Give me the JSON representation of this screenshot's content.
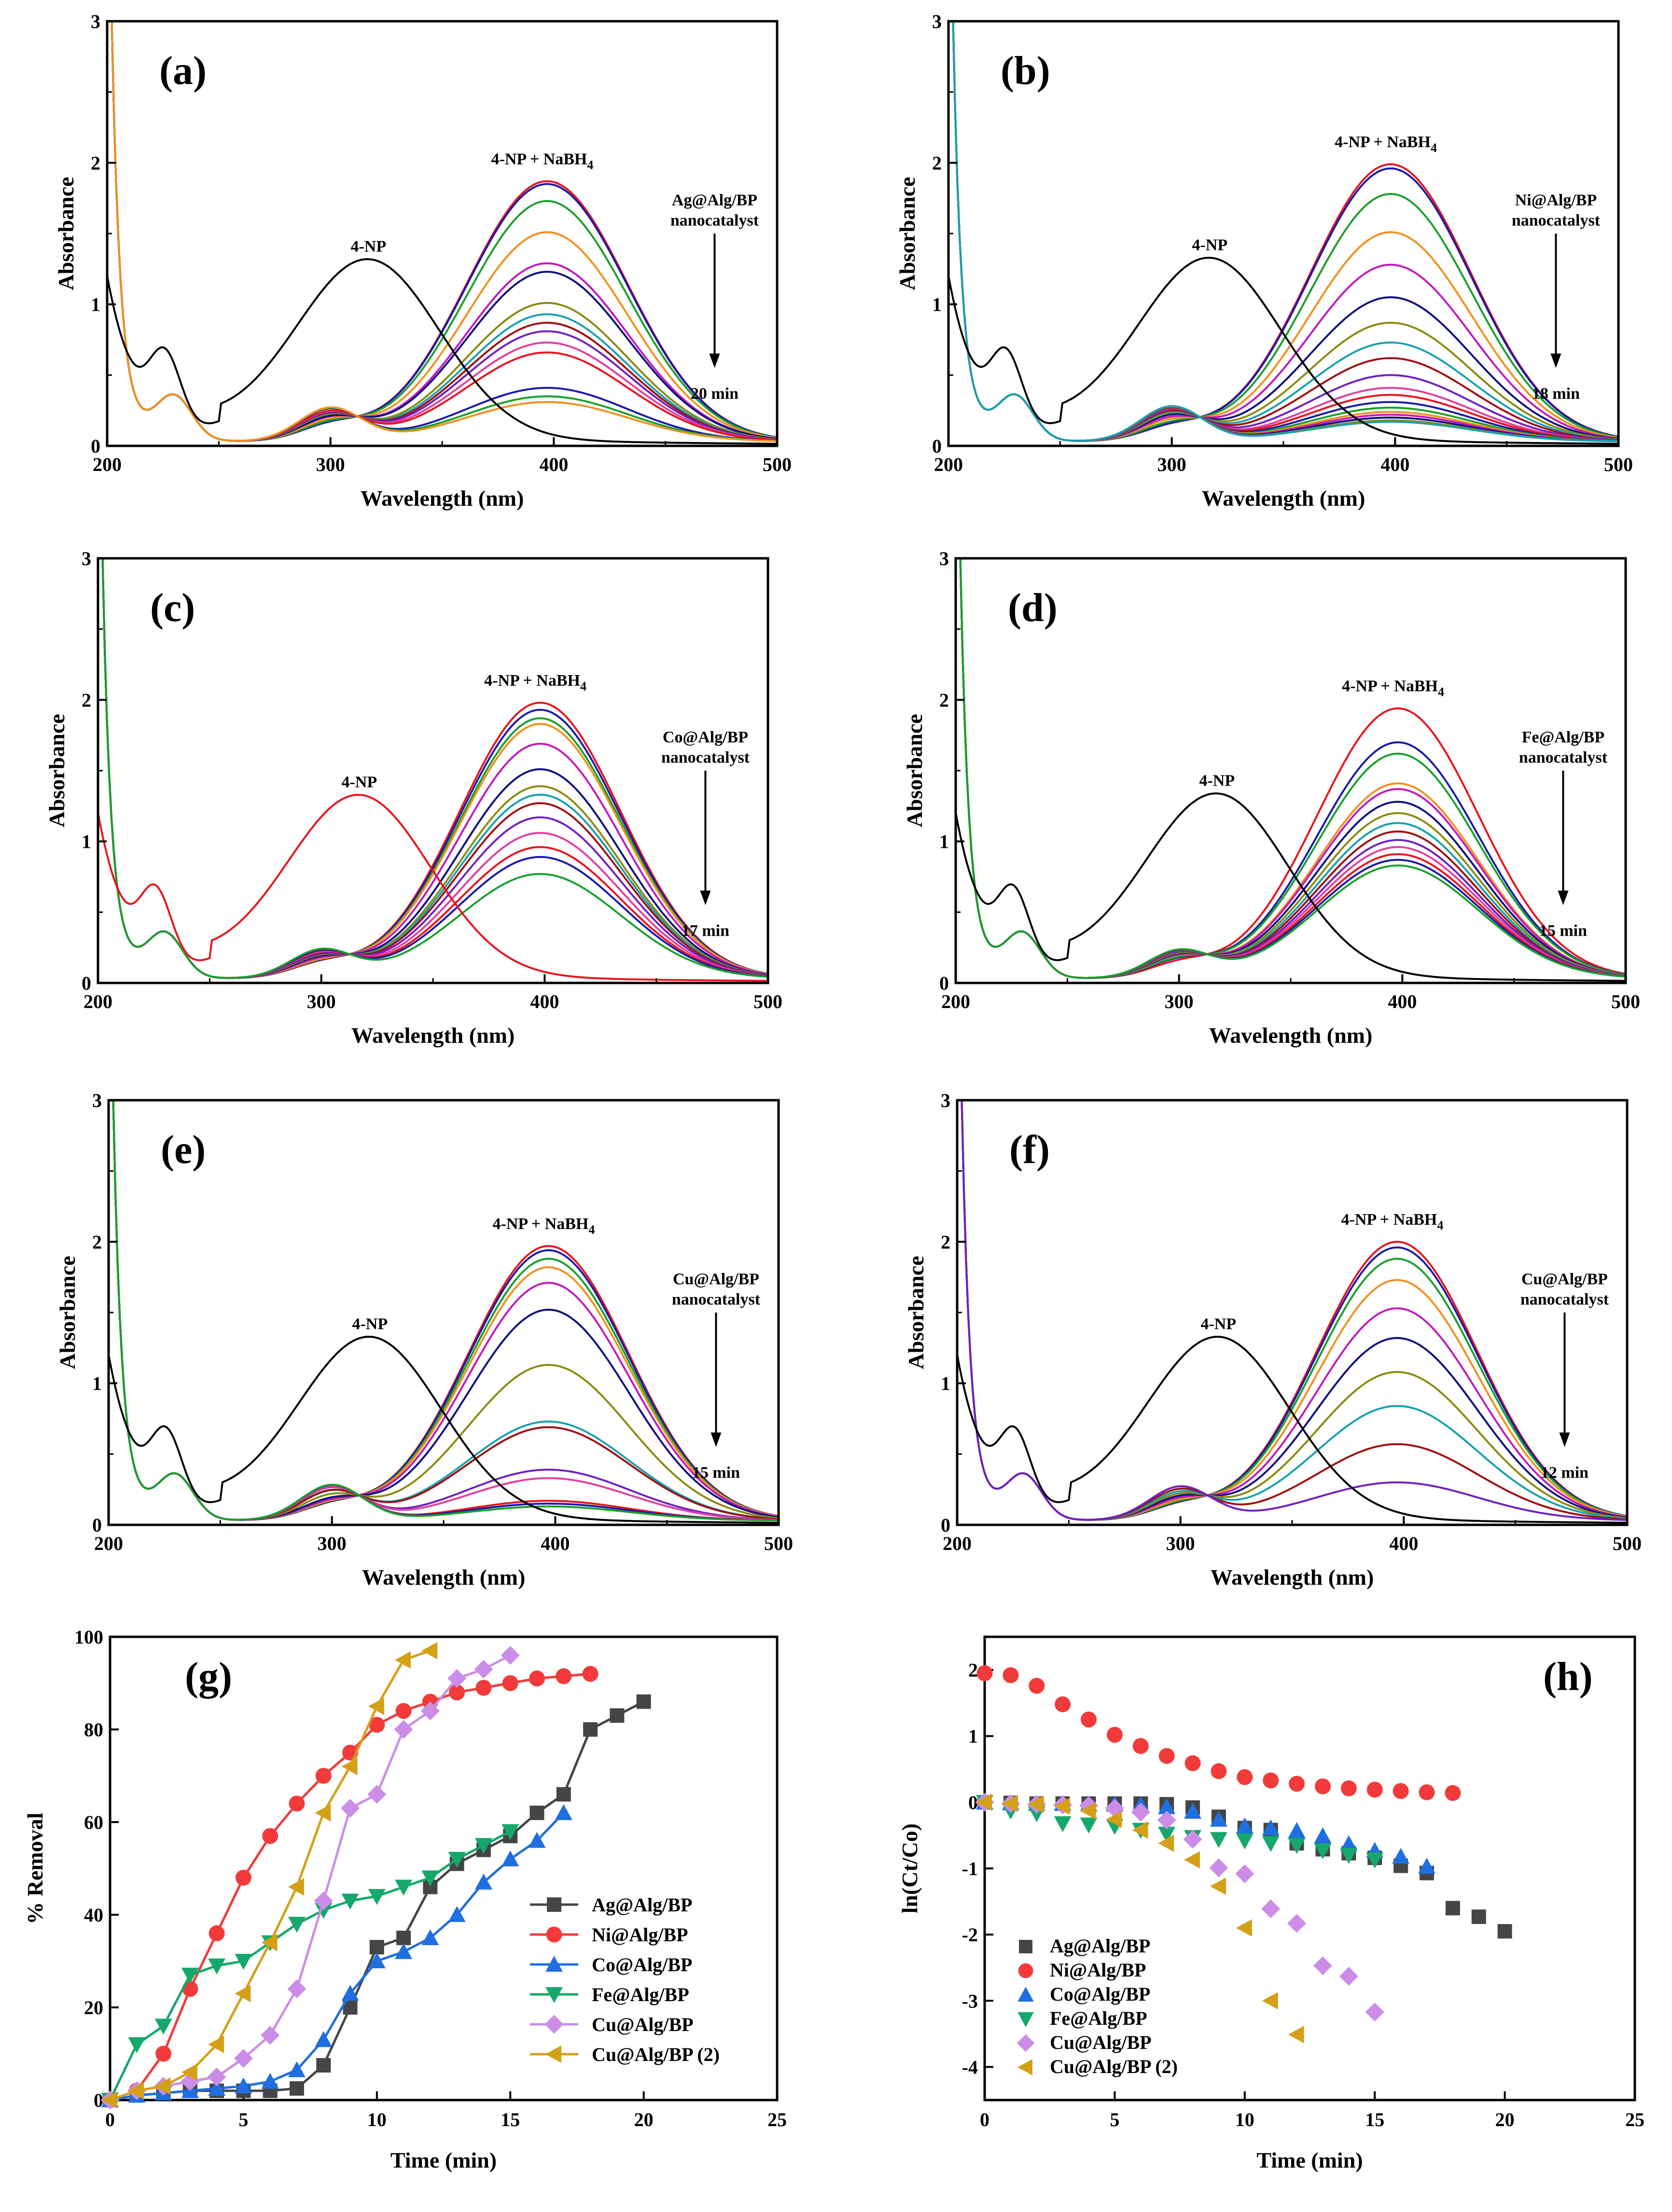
{
  "colors": {
    "black": "#000000",
    "red": "#e8141e",
    "blue": "#1a1aa8",
    "green": "#18a02a",
    "orange": "#f2901e",
    "magenta": "#c01abe",
    "navy": "#101080",
    "olive": "#8a8a10",
    "teal": "#18a0b0",
    "darkred": "#a01010",
    "violet": "#7020c0",
    "pink": "#e040a0",
    "ag": "#454545",
    "ni": "#f23a3a",
    "co": "#1f6fe0",
    "fe": "#15a86b",
    "cu": "#cc8de8",
    "cu2": "#d4a017"
  },
  "chart_data": [
    {
      "id": "a",
      "type": "line",
      "panel_label": "(a)",
      "xlabel": "Wavelength (nm)",
      "ylabel": "Absorbance",
      "xlim": [
        200,
        500
      ],
      "ylim": [
        0,
        3
      ],
      "xticks": [
        "200",
        "300",
        "400",
        "500"
      ],
      "yticks": [
        "0",
        "1",
        "2",
        "3"
      ],
      "label_4np": "4-NP",
      "label_mix": "4-NP + NaBH",
      "label_mix_sub": "4",
      "catalyst_line1": "Ag@Alg/BP",
      "catalyst_line2": "nanocatalyst",
      "time_label": "20 min",
      "peak_nm": 397,
      "peak_values": [
        1.84,
        1.82,
        1.7,
        1.48,
        1.26,
        1.2,
        0.98,
        0.9,
        0.84,
        0.78,
        0.7,
        0.63,
        0.38,
        0.32,
        0.28
      ],
      "np_peak": 1.25
    },
    {
      "id": "b",
      "type": "line",
      "panel_label": "(b)",
      "xlabel": "Wavelength (nm)",
      "ylabel": "Absorbance",
      "xlim": [
        200,
        500
      ],
      "ylim": [
        0,
        3
      ],
      "xticks": [
        "200",
        "300",
        "400",
        "500"
      ],
      "yticks": [
        "0",
        "1",
        "2",
        "3"
      ],
      "label_4np": "4-NP",
      "label_mix": "4-NP + NaBH",
      "label_mix_sub": "4",
      "catalyst_line1": "Ni@Alg/BP",
      "catalyst_line2": "nanocatalyst",
      "time_label": "18 min",
      "peak_nm": 398,
      "peak_values": [
        1.96,
        1.93,
        1.75,
        1.48,
        1.25,
        1.02,
        0.84,
        0.7,
        0.59,
        0.47,
        0.38,
        0.33,
        0.28,
        0.24,
        0.21,
        0.19,
        0.17,
        0.15,
        0.14
      ],
      "np_peak": 1.26
    },
    {
      "id": "c",
      "type": "line",
      "panel_label": "(c)",
      "xlabel": "Wavelength (nm)",
      "ylabel": "Absorbance",
      "xlim": [
        200,
        500
      ],
      "ylim": [
        0,
        3
      ],
      "xticks": [
        "200",
        "300",
        "400",
        "500"
      ],
      "yticks": [
        "0",
        "1",
        "2",
        "3"
      ],
      "label_4np": "4-NP",
      "label_mix": "4-NP + NaBH",
      "label_mix_sub": "4",
      "catalyst_line1": "Co@Alg/BP",
      "catalyst_line2": "nanocatalyst",
      "time_label": "17 min",
      "peak_nm": 398,
      "peak_values": [
        1.95,
        1.9,
        1.84,
        1.8,
        1.66,
        1.48,
        1.36,
        1.3,
        1.24,
        1.14,
        1.03,
        0.93,
        0.86,
        0.74
      ],
      "np_peak": 1.26
    },
    {
      "id": "d",
      "type": "line",
      "panel_label": "(d)",
      "xlabel": "Wavelength (nm)",
      "ylabel": "Absorbance",
      "xlim": [
        200,
        500
      ],
      "ylim": [
        0,
        3
      ],
      "xticks": [
        "200",
        "300",
        "400",
        "500"
      ],
      "yticks": [
        "0",
        "1",
        "2",
        "3"
      ],
      "label_4np": "4-NP",
      "label_mix": "4-NP + NaBH",
      "label_mix_sub": "4",
      "catalyst_line1": "Fe@Alg/BP",
      "catalyst_line2": "nanocatalyst",
      "time_label": "15 min",
      "peak_nm": 398,
      "peak_values": [
        1.91,
        1.67,
        1.59,
        1.38,
        1.34,
        1.25,
        1.17,
        1.1,
        1.04,
        0.98,
        0.93,
        0.88,
        0.84,
        0.8
      ],
      "np_peak": 1.27
    },
    {
      "id": "e",
      "type": "line",
      "panel_label": "(e)",
      "xlabel": "Wavelength (nm)",
      "ylabel": "Absorbance",
      "xlim": [
        200,
        500
      ],
      "ylim": [
        0,
        3
      ],
      "xticks": [
        "200",
        "300",
        "400",
        "500"
      ],
      "yticks": [
        "0",
        "1",
        "2",
        "3"
      ],
      "label_4np": "4-NP",
      "label_mix": "4-NP + NaBH",
      "label_mix_sub": "4",
      "catalyst_line1": "Cu@Alg/BP",
      "catalyst_line2": "nanocatalyst",
      "time_label": "15 min",
      "peak_nm": 397,
      "peak_values": [
        1.94,
        1.91,
        1.85,
        1.79,
        1.68,
        1.49,
        1.1,
        0.7,
        0.66,
        0.36,
        0.3,
        0.14,
        0.12,
        0.1
      ],
      "np_peak": 1.26
    },
    {
      "id": "f",
      "type": "line",
      "panel_label": "(f)",
      "xlabel": "Wavelength (nm)",
      "ylabel": "Absorbance",
      "xlim": [
        200,
        500
      ],
      "ylim": [
        0,
        3
      ],
      "xticks": [
        "200",
        "300",
        "400",
        "500"
      ],
      "yticks": [
        "0",
        "1",
        "2",
        "3"
      ],
      "label_4np": "4-NP",
      "label_mix": "4-NP + NaBH",
      "label_mix_sub": "4",
      "catalyst_line1": "Cu@Alg/BP",
      "catalyst_line2": "nanocatalyst",
      "time_label": "12 min",
      "peak_nm": 397,
      "peak_values": [
        1.97,
        1.93,
        1.85,
        1.7,
        1.5,
        1.29,
        1.05,
        0.81,
        0.54,
        0.27
      ],
      "np_peak": 1.26
    },
    {
      "id": "g",
      "type": "line",
      "panel_label": "(g)",
      "xlabel": "Time (min)",
      "ylabel": "% Removal",
      "xlim": [
        0,
        25
      ],
      "ylim": [
        0,
        100
      ],
      "xticks": [
        "0",
        "5",
        "10",
        "15",
        "20",
        "25"
      ],
      "yticks": [
        "0",
        "20",
        "40",
        "60",
        "80",
        "100"
      ],
      "series": [
        {
          "name": "Ag@Alg/BP",
          "marker": "square",
          "color_key": "ag",
          "x": [
            0,
            1,
            2,
            3,
            4,
            5,
            6,
            7,
            8,
            9,
            10,
            11,
            12,
            13,
            14,
            15,
            16,
            17,
            18,
            19,
            20
          ],
          "y": [
            0,
            1,
            1.5,
            2,
            2,
            2,
            2,
            2.5,
            7.5,
            20,
            33,
            35,
            46,
            51,
            54,
            57,
            62,
            66,
            80,
            83,
            86
          ]
        },
        {
          "name": "Ni@Alg/BP",
          "marker": "circle",
          "color_key": "ni",
          "x": [
            0,
            1,
            2,
            3,
            4,
            5,
            6,
            7,
            8,
            9,
            10,
            11,
            12,
            13,
            14,
            15,
            16,
            17,
            18
          ],
          "y": [
            0,
            2,
            10,
            24,
            36,
            48,
            57,
            64,
            70,
            75,
            81,
            84,
            86,
            88,
            89,
            90,
            91,
            91.5,
            92
          ]
        },
        {
          "name": "Co@Alg/BP",
          "marker": "triangle-up",
          "color_key": "co",
          "x": [
            0,
            1,
            2,
            3,
            4,
            5,
            6,
            7,
            8,
            9,
            10,
            11,
            12,
            13,
            14,
            15,
            16,
            17
          ],
          "y": [
            0,
            1,
            1.5,
            2,
            2.5,
            3,
            4,
            6.5,
            13,
            23,
            30,
            32,
            35,
            40,
            47,
            52,
            56,
            62
          ]
        },
        {
          "name": "Fe@Alg/BP",
          "marker": "triangle-down",
          "color_key": "fe",
          "x": [
            0,
            1,
            2,
            3,
            4,
            5,
            6,
            7,
            8,
            9,
            10,
            11,
            12,
            13,
            14,
            15
          ],
          "y": [
            0,
            12,
            16,
            27,
            29,
            30,
            34,
            38,
            41,
            43,
            44,
            46,
            48,
            52,
            55,
            58
          ]
        },
        {
          "name": "Cu@Alg/BP",
          "marker": "diamond",
          "color_key": "cu",
          "x": [
            0,
            1,
            2,
            3,
            4,
            5,
            6,
            7,
            8,
            9,
            10,
            11,
            12,
            13,
            14,
            15
          ],
          "y": [
            0,
            2,
            3,
            4,
            5,
            9,
            14,
            24,
            43,
            63,
            66,
            80,
            84,
            91,
            93,
            96
          ]
        },
        {
          "name": "Cu@Alg/BP (2)",
          "marker": "triangle-left",
          "color_key": "cu2",
          "x": [
            0,
            1,
            2,
            3,
            4,
            5,
            6,
            7,
            8,
            9,
            10,
            11,
            12
          ],
          "y": [
            0,
            2,
            3,
            6,
            12,
            23,
            34,
            46,
            62,
            72,
            85,
            95,
            97
          ]
        }
      ]
    },
    {
      "id": "h",
      "type": "scatter",
      "panel_label": "(h)",
      "xlabel": "Time (min)",
      "ylabel": "ln(Ct/Co)",
      "xlim": [
        0,
        25
      ],
      "ylim": [
        -4.5,
        2.5
      ],
      "xticks": [
        "0",
        "5",
        "10",
        "15",
        "20",
        "25"
      ],
      "yticks": [
        "2",
        "1",
        "0",
        "-1",
        "-2",
        "-3",
        "-4"
      ],
      "series": [
        {
          "name": "Ag@Alg/BP",
          "marker": "square",
          "color_key": "ag",
          "x": [
            0,
            1,
            2,
            3,
            4,
            5,
            6,
            7,
            8,
            9,
            10,
            11,
            12,
            13,
            14,
            15,
            16,
            17,
            18,
            19,
            20
          ],
          "y": [
            0,
            -0.01,
            -0.02,
            -0.02,
            -0.02,
            -0.02,
            -0.02,
            -0.03,
            -0.08,
            -0.22,
            -0.39,
            -0.42,
            -0.62,
            -0.71,
            -0.77,
            -0.84,
            -0.96,
            -1.07,
            -1.6,
            -1.73,
            -1.95
          ]
        },
        {
          "name": "Ni@Alg/BP",
          "marker": "circle",
          "color_key": "ni",
          "x": [
            0,
            1,
            2,
            3,
            4,
            5,
            6,
            7,
            8,
            9,
            10,
            11,
            12,
            13,
            14,
            15,
            16,
            17,
            18
          ],
          "y": [
            1.95,
            1.92,
            1.76,
            1.48,
            1.25,
            1.02,
            0.85,
            0.7,
            0.59,
            0.47,
            0.38,
            0.33,
            0.28,
            0.24,
            0.21,
            0.19,
            0.17,
            0.15,
            0.14
          ]
        },
        {
          "name": "Co@Alg/BP",
          "marker": "triangle-up",
          "color_key": "co",
          "x": [
            0,
            1,
            2,
            3,
            4,
            5,
            6,
            7,
            8,
            9,
            10,
            11,
            12,
            13,
            14,
            15,
            16,
            17
          ],
          "y": [
            0,
            -0.01,
            -0.02,
            -0.02,
            -0.03,
            -0.03,
            -0.04,
            -0.07,
            -0.14,
            -0.26,
            -0.36,
            -0.39,
            -0.43,
            -0.51,
            -0.63,
            -0.73,
            -0.82,
            -0.97
          ]
        },
        {
          "name": "Fe@Alg/BP",
          "marker": "triangle-down",
          "color_key": "fe",
          "x": [
            0,
            1,
            2,
            3,
            4,
            5,
            6,
            7,
            8,
            9,
            10,
            11,
            12,
            13,
            14,
            15
          ],
          "y": [
            0,
            -0.13,
            -0.17,
            -0.32,
            -0.34,
            -0.36,
            -0.42,
            -0.48,
            -0.53,
            -0.56,
            -0.58,
            -0.62,
            -0.65,
            -0.73,
            -0.8,
            -0.87
          ]
        },
        {
          "name": "Cu@Alg/BP",
          "marker": "diamond",
          "color_key": "cu",
          "x": [
            0,
            1,
            2,
            3,
            4,
            5,
            6,
            7,
            8,
            9,
            10,
            11,
            12,
            13,
            14,
            15
          ],
          "y": [
            0,
            -0.02,
            -0.03,
            -0.04,
            -0.05,
            -0.09,
            -0.15,
            -0.27,
            -0.56,
            -0.99,
            -1.08,
            -1.61,
            -1.83,
            -2.47,
            -2.63,
            -3.17
          ]
        },
        {
          "name": "Cu@Alg/BP (2)",
          "marker": "triangle-left",
          "color_key": "cu2",
          "x": [
            0,
            1,
            2,
            3,
            4,
            5,
            6,
            7,
            8,
            9,
            10,
            11,
            12
          ],
          "y": [
            0,
            -0.02,
            -0.03,
            -0.06,
            -0.13,
            -0.26,
            -0.42,
            -0.62,
            -0.87,
            -1.27,
            -1.9,
            -3.0,
            -3.51
          ]
        }
      ]
    }
  ]
}
